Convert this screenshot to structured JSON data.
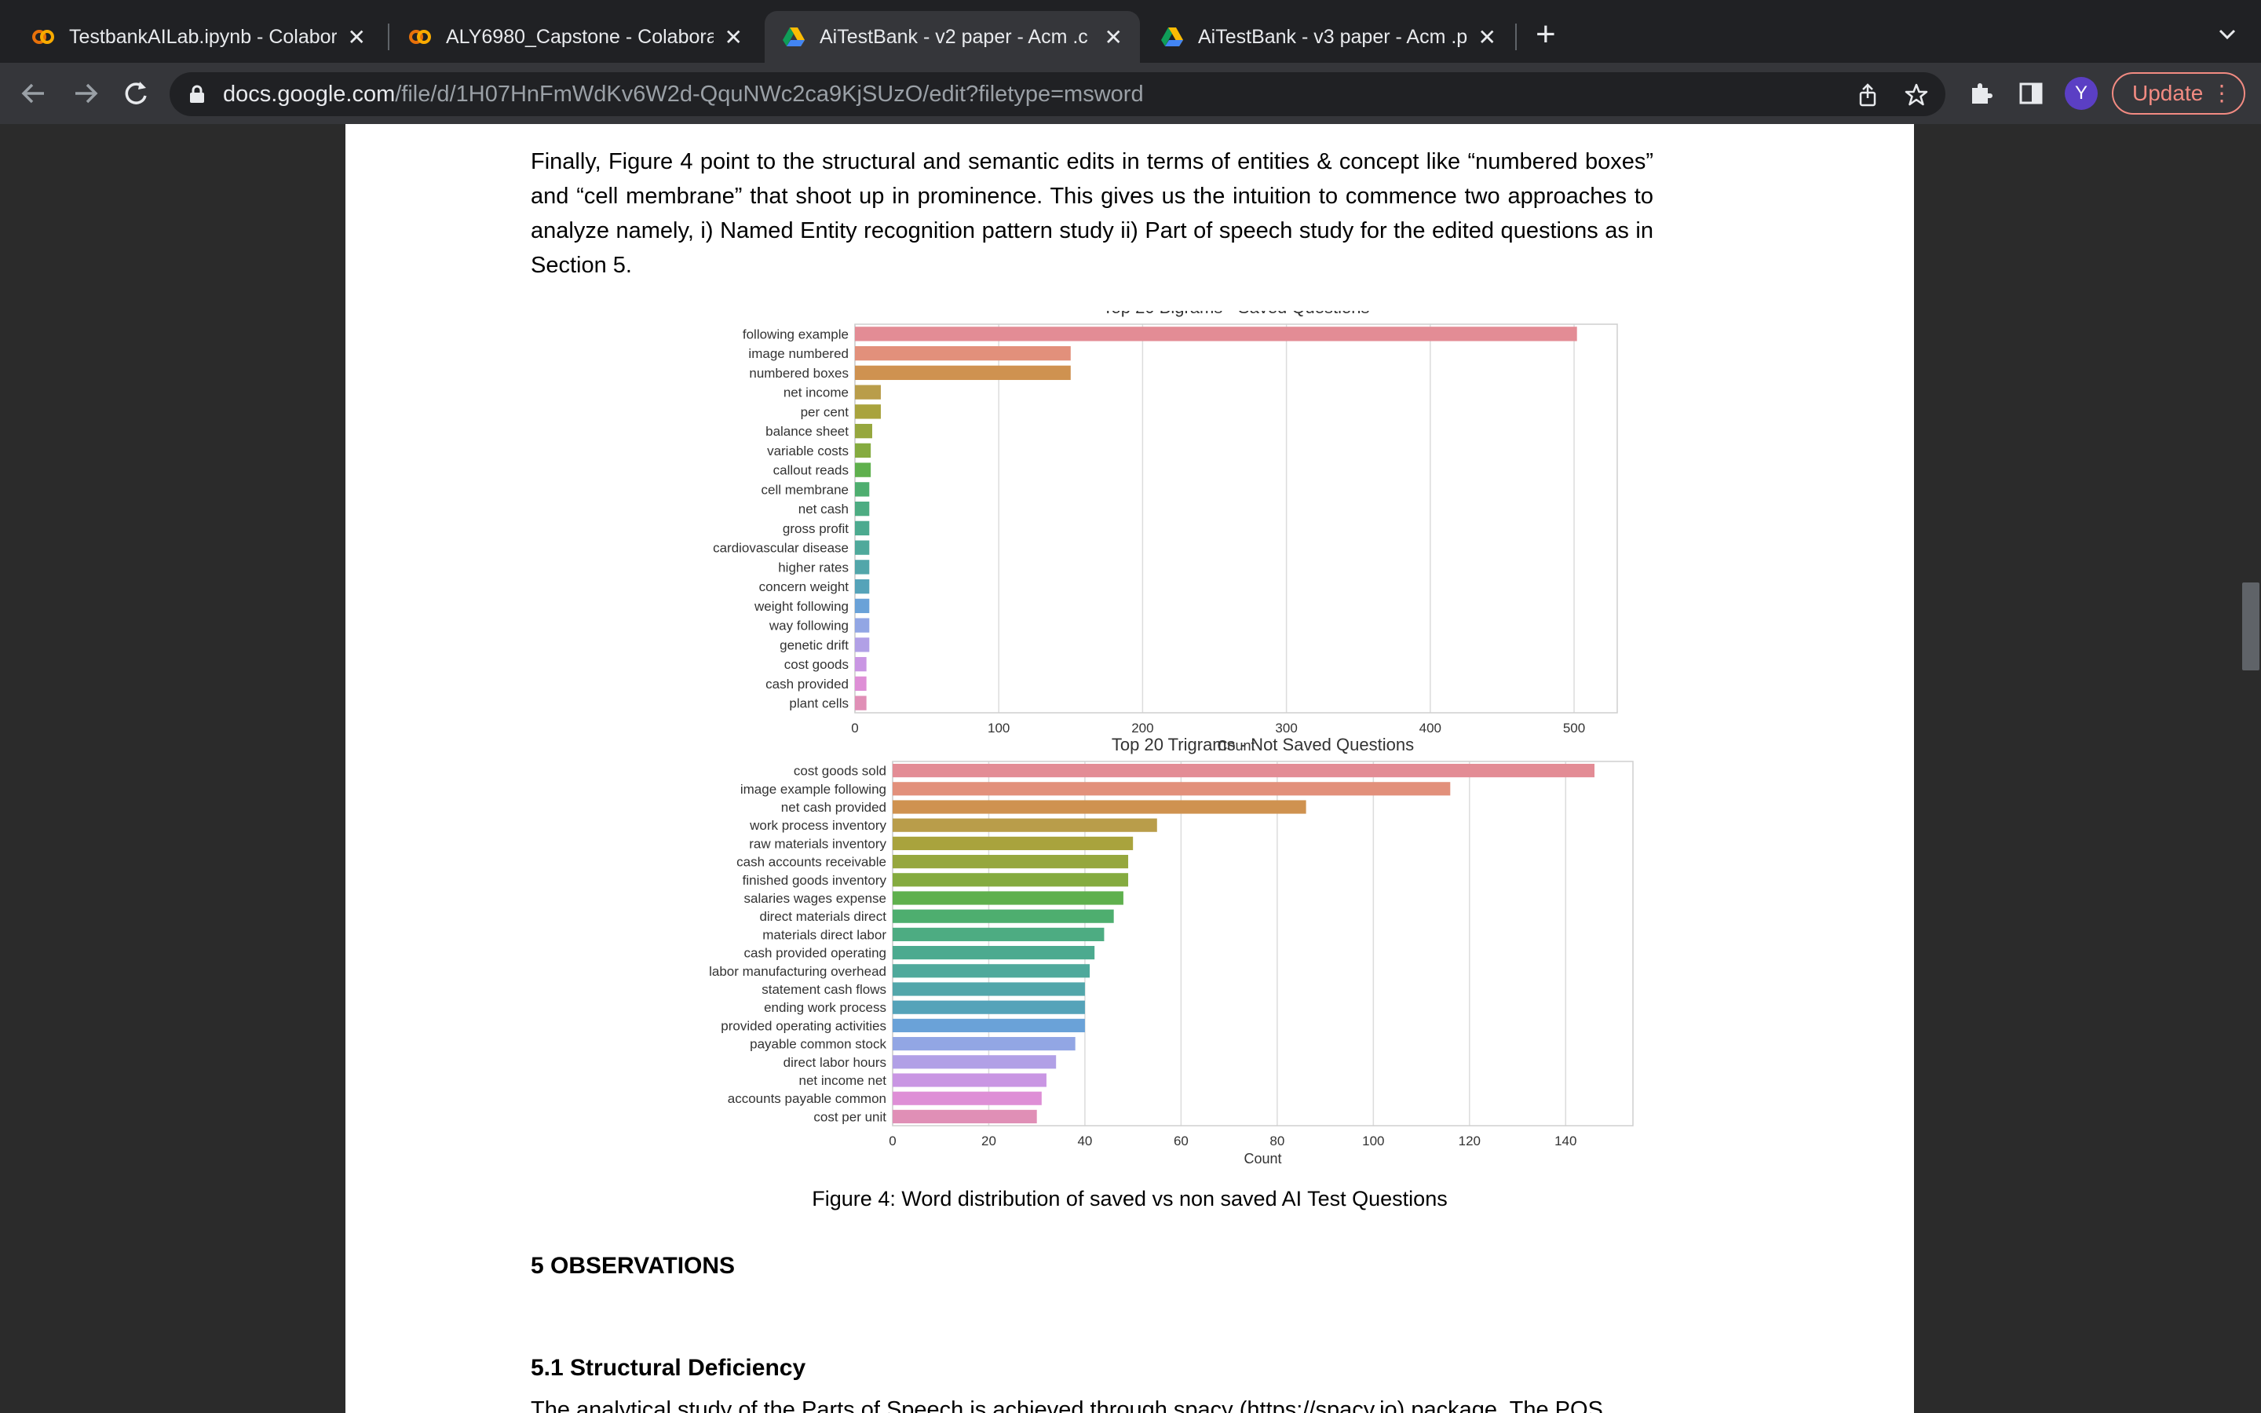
{
  "tabs": [
    {
      "title": "TestbankAILab.ipynb - Colabor",
      "icon": "colab-icon",
      "active": false
    },
    {
      "title": "ALY6980_Capstone - Colabora",
      "icon": "colab-icon",
      "active": false
    },
    {
      "title": "AiTestBank - v2 paper - Acm .c",
      "icon": "google-drive-icon",
      "active": true
    },
    {
      "title": "AiTestBank - v3 paper - Acm .p",
      "icon": "google-drive-icon",
      "active": false
    }
  ],
  "toolbar": {
    "url_host": "docs.google.com",
    "url_path": "/file/d/1H07HnFmWdKv6W2d-QquNWc2ca9KjSUzO/edit?filetype=msword",
    "profile_initial": "Y",
    "update_label": "Update"
  },
  "document": {
    "paragraph": "Finally, Figure 4 point to the structural and semantic edits in terms of entities & concept like “numbered boxes” and “cell membrane” that shoot up in prominence. This gives us the intuition to commence two approaches to analyze namely, i) Named Entity recognition pattern study ii) Part of speech study for the edited questions as in Section 5.",
    "caption": "Figure 4: Word distribution of saved vs non saved AI Test Questions",
    "section_heading": "5   OBSERVATIONS",
    "subsection_heading": "5.1  Structural Deficiency",
    "cut_line": "The analytical study of the Parts of Speech is achieved through spacy (https://spacy.io) package. The POS"
  },
  "chart_data": [
    {
      "type": "bar",
      "orientation": "horizontal",
      "title": "Top 20 Bigrams - Saved Questions",
      "xlabel": "Count",
      "ylabel": "",
      "xlim": [
        0,
        530
      ],
      "xticks": [
        0,
        100,
        200,
        300,
        400,
        500
      ],
      "grid": true,
      "categories": [
        "following example",
        "image numbered",
        "numbered boxes",
        "net income",
        "per cent",
        "balance sheet",
        "variable costs",
        "callout reads",
        "cell membrane",
        "net cash",
        "gross profit",
        "cardiovascular disease",
        "higher rates",
        "concern weight",
        "weight following",
        "way following",
        "genetic drift",
        "cost goods",
        "cash provided",
        "plant cells"
      ],
      "values": [
        502,
        150,
        150,
        18,
        18,
        12,
        11,
        11,
        10,
        10,
        10,
        10,
        10,
        10,
        10,
        10,
        10,
        8,
        8,
        8
      ],
      "colors": [
        "#e38c95",
        "#e2907b",
        "#cf9250",
        "#b99d4a",
        "#a9a33d",
        "#96a73e",
        "#85ab3f",
        "#5fb04d",
        "#4eae6f",
        "#4dac82",
        "#4caa8f",
        "#4fa99b",
        "#52a6aa",
        "#55a3b9",
        "#6aa2d8",
        "#92a6e4",
        "#b1a0e6",
        "#c996e3",
        "#de8fd6",
        "#e08fb6"
      ]
    },
    {
      "type": "bar",
      "orientation": "horizontal",
      "title": "Top 20 Trigrams - Not Saved Questions",
      "xlabel": "Count",
      "ylabel": "",
      "xlim": [
        0,
        154
      ],
      "xticks": [
        0,
        20,
        40,
        60,
        80,
        100,
        120,
        140
      ],
      "grid": true,
      "categories": [
        "cost goods sold",
        "image example following",
        "net cash provided",
        "work process inventory",
        "raw materials inventory",
        "cash accounts receivable",
        "finished goods inventory",
        "salaries wages expense",
        "direct materials direct",
        "materials direct labor",
        "cash provided operating",
        "labor manufacturing overhead",
        "statement cash flows",
        "ending work process",
        "provided operating activities",
        "payable common stock",
        "direct labor hours",
        "net income net",
        "accounts payable common",
        "cost per unit"
      ],
      "values": [
        146,
        116,
        86,
        55,
        50,
        49,
        49,
        48,
        46,
        44,
        42,
        41,
        40,
        40,
        40,
        38,
        34,
        32,
        31,
        30
      ],
      "colors": [
        "#e38c95",
        "#e2907b",
        "#cf9250",
        "#b99d4a",
        "#a9a33d",
        "#96a73e",
        "#85ab3f",
        "#5fb04d",
        "#4eae6f",
        "#4dac82",
        "#4caa8f",
        "#4fa99b",
        "#52a6aa",
        "#55a3b9",
        "#6aa2d8",
        "#92a6e4",
        "#b1a0e6",
        "#c996e3",
        "#de8fd6",
        "#e08fb6"
      ]
    }
  ]
}
